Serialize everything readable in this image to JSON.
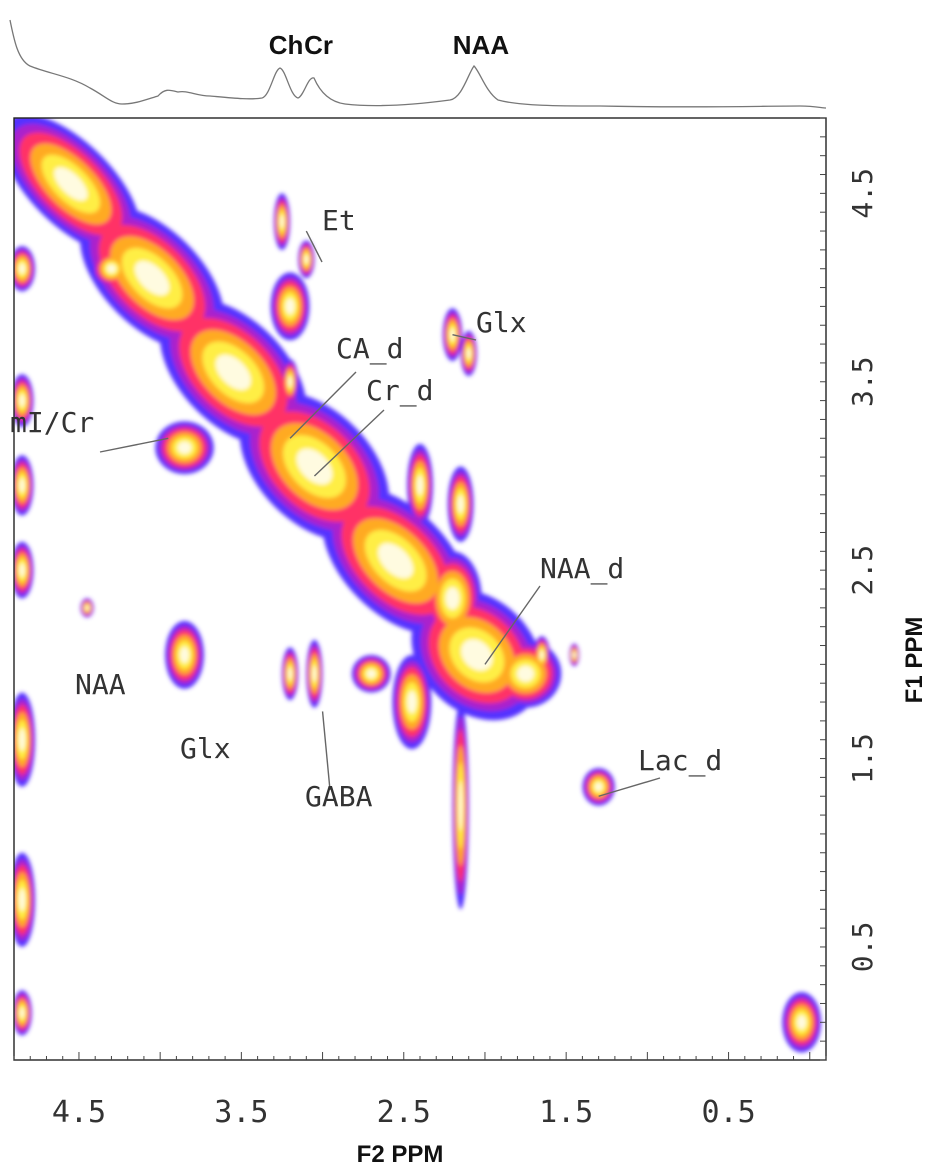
{
  "chart_data": {
    "type": "heatmap",
    "title": "",
    "xlabel": "F2  PPM",
    "ylabel": "F1  PPM",
    "x_axis": {
      "range": [
        4.9,
        -0.1
      ],
      "direction": "decreasing",
      "tick_labels": [
        "4.5",
        "3.5",
        "2.5",
        "1.5",
        "0.5"
      ]
    },
    "y_axis": {
      "range": [
        -0.1,
        4.9
      ],
      "position": "right",
      "tick_labels": [
        "4.5",
        "3.5",
        "2.5",
        "1.5",
        "0.5"
      ]
    },
    "colormap": [
      "#ffffff",
      "#5533ff",
      "#aa22cc",
      "#ff3366",
      "#ffaa22",
      "#ffee44",
      "#fffbe0"
    ],
    "grid": false,
    "spectrum_1d": {
      "peak_labels": [
        {
          "label": "Ch",
          "ppm": 3.2
        },
        {
          "label": "Cr",
          "ppm": 3.0
        },
        {
          "label": "NAA",
          "ppm": 2.0
        }
      ]
    },
    "peaks_2d": [
      {
        "label": "Et",
        "f2": 3.1,
        "f1": 4.3
      },
      {
        "label": "Glx",
        "f2": 2.2,
        "f1": 3.75
      },
      {
        "label": "CA_d",
        "f2": 3.2,
        "f1": 3.2
      },
      {
        "label": "Cr_d",
        "f2": 3.05,
        "f1": 3.0
      },
      {
        "label": "mI/Cr",
        "f2": 3.95,
        "f1": 3.2
      },
      {
        "label": "NAA_d",
        "f2": 2.0,
        "f1": 2.0
      },
      {
        "label": "NAA",
        "f2": 3.85,
        "f1": 2.0
      },
      {
        "label": "Glx",
        "f2": 3.85,
        "f1": 1.75
      },
      {
        "label": "GABA",
        "f2": 3.0,
        "f1": 1.75
      },
      {
        "label": "Lac_d",
        "f2": 1.3,
        "f1": 1.3
      }
    ]
  },
  "labels": {
    "x_ticks": [
      "4.5",
      "3.5",
      "2.5",
      "1.5",
      "0.5"
    ],
    "y_ticks": [
      "4.5",
      "3.5",
      "2.5",
      "1.5",
      "0.5"
    ],
    "xlabel": "F2  PPM",
    "ylabel": "F1  PPM",
    "top_peaks": [
      "Ch",
      "Cr",
      "NAA"
    ],
    "annotations": [
      "Et",
      "Glx",
      "CA_d",
      "Cr_d",
      "mI/Cr",
      "NAA_d",
      "NAA",
      "Glx",
      "GABA",
      "Lac_d"
    ]
  }
}
